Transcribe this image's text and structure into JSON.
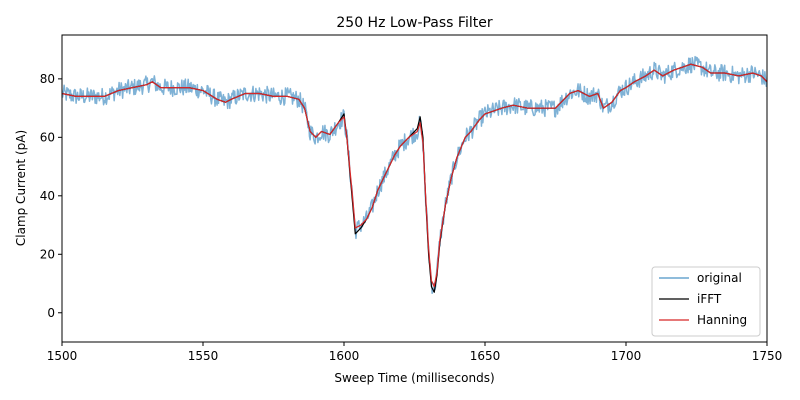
{
  "chart_data": {
    "type": "line",
    "title": "250 Hz Low-Pass Filter",
    "xlabel": "Sweep Time (milliseconds)",
    "ylabel": "Clamp Current (pA)",
    "xlim": [
      1500,
      1750
    ],
    "ylim": [
      -10,
      95
    ],
    "xticks": [
      1500,
      1550,
      1600,
      1650,
      1700,
      1750
    ],
    "yticks": [
      0,
      20,
      40,
      60,
      80
    ],
    "grid": false,
    "legend_position": "lower-right",
    "series": [
      {
        "name": "original",
        "color": "#7fb2d6",
        "noise_amplitude_pA": 3,
        "x": [
          1500,
          1505,
          1510,
          1515,
          1520,
          1525,
          1530,
          1532,
          1535,
          1540,
          1545,
          1550,
          1555,
          1558,
          1560,
          1565,
          1570,
          1575,
          1580,
          1584,
          1586,
          1588,
          1590,
          1592,
          1595,
          1598,
          1600,
          1601,
          1603,
          1604,
          1606,
          1608,
          1610,
          1612,
          1615,
          1618,
          1620,
          1623,
          1626,
          1627,
          1628,
          1629,
          1630,
          1631,
          1632,
          1633,
          1634,
          1636,
          1638,
          1640,
          1643,
          1645,
          1648,
          1650,
          1653,
          1656,
          1660,
          1665,
          1670,
          1675,
          1680,
          1683,
          1687,
          1690,
          1692,
          1695,
          1698,
          1700,
          1703,
          1707,
          1710,
          1713,
          1717,
          1720,
          1723,
          1727,
          1730,
          1735,
          1740,
          1745,
          1748,
          1750
        ],
        "y": [
          75,
          74,
          74,
          74,
          76,
          77,
          78,
          79,
          77,
          77,
          77,
          76,
          73,
          72,
          73,
          75,
          75,
          74,
          74,
          73,
          70,
          62,
          60,
          62,
          61,
          65,
          67,
          60,
          40,
          28,
          30,
          32,
          36,
          42,
          48,
          54,
          57,
          60,
          62,
          65,
          58,
          38,
          22,
          10,
          8,
          14,
          25,
          37,
          46,
          53,
          60,
          62,
          66,
          68,
          69,
          70,
          71,
          70,
          70,
          70,
          75,
          76,
          74,
          75,
          70,
          72,
          76,
          77,
          79,
          81,
          83,
          81,
          83,
          84,
          85,
          84,
          82,
          82,
          81,
          82,
          81,
          79
        ]
      },
      {
        "name": "iFFT",
        "color": "#000000",
        "x": [
          1500,
          1505,
          1510,
          1515,
          1520,
          1525,
          1530,
          1532,
          1535,
          1540,
          1545,
          1550,
          1555,
          1558,
          1560,
          1565,
          1570,
          1575,
          1580,
          1584,
          1586,
          1588,
          1590,
          1592,
          1595,
          1598,
          1600,
          1601,
          1603,
          1604,
          1606,
          1608,
          1610,
          1612,
          1615,
          1618,
          1620,
          1623,
          1626,
          1627,
          1628,
          1629,
          1630,
          1631,
          1632,
          1633,
          1634,
          1636,
          1638,
          1640,
          1643,
          1645,
          1648,
          1650,
          1653,
          1656,
          1660,
          1665,
          1670,
          1675,
          1680,
          1683,
          1687,
          1690,
          1692,
          1695,
          1698,
          1700,
          1703,
          1707,
          1710,
          1713,
          1717,
          1720,
          1723,
          1727,
          1730,
          1735,
          1740,
          1745,
          1748,
          1750
        ],
        "y": [
          75,
          74,
          74,
          74,
          76,
          77,
          78,
          79,
          77,
          77,
          77,
          76,
          73,
          72,
          73,
          75,
          75,
          74,
          74,
          73,
          70,
          62,
          60,
          62,
          61,
          65,
          68,
          60,
          38,
          27,
          29,
          32,
          36,
          42,
          48,
          54,
          57,
          60,
          63,
          67,
          60,
          38,
          20,
          9,
          7,
          13,
          24,
          37,
          46,
          53,
          60,
          62,
          66,
          68,
          69,
          70,
          71,
          70,
          70,
          70,
          75,
          76,
          74,
          75,
          70,
          72,
          76,
          77,
          79,
          81,
          83,
          81,
          83,
          84,
          85,
          84,
          82,
          82,
          81,
          82,
          81,
          79
        ]
      },
      {
        "name": "Hanning",
        "color": "#d62728",
        "x": [
          1500,
          1505,
          1510,
          1515,
          1520,
          1525,
          1530,
          1532,
          1535,
          1540,
          1545,
          1550,
          1555,
          1558,
          1560,
          1565,
          1570,
          1575,
          1580,
          1584,
          1586,
          1588,
          1590,
          1592,
          1595,
          1598,
          1600,
          1601,
          1603,
          1604,
          1606,
          1608,
          1610,
          1612,
          1615,
          1618,
          1620,
          1623,
          1626,
          1627,
          1628,
          1629,
          1630,
          1631,
          1632,
          1633,
          1634,
          1636,
          1638,
          1640,
          1643,
          1645,
          1648,
          1650,
          1653,
          1656,
          1660,
          1665,
          1670,
          1675,
          1680,
          1683,
          1687,
          1690,
          1692,
          1695,
          1698,
          1700,
          1703,
          1707,
          1710,
          1713,
          1717,
          1720,
          1723,
          1727,
          1730,
          1735,
          1740,
          1745,
          1748,
          1750
        ],
        "y": [
          75,
          74,
          74,
          74,
          76,
          77,
          78,
          79,
          77,
          77,
          77,
          76,
          73,
          72,
          73,
          75,
          75,
          74,
          74,
          73,
          70,
          62,
          60,
          62,
          61,
          65,
          67,
          60,
          40,
          29,
          30,
          32,
          36,
          42,
          48,
          54,
          57,
          60,
          62,
          65,
          58,
          39,
          22,
          11,
          9,
          14,
          25,
          37,
          46,
          53,
          60,
          62,
          66,
          68,
          69,
          70,
          71,
          70,
          70,
          70,
          75,
          76,
          74,
          75,
          70,
          72,
          76,
          77,
          79,
          81,
          83,
          81,
          83,
          84,
          85,
          84,
          82,
          82,
          81,
          82,
          81,
          79
        ]
      }
    ]
  }
}
